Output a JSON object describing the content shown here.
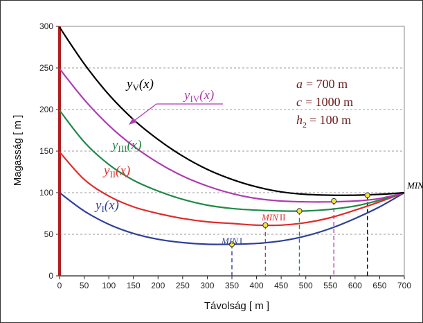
{
  "chart_data": {
    "type": "line",
    "xlabel": "Távolság  [ m ]",
    "ylabel": "Magasság  [ m ]",
    "xlim": [
      0,
      700
    ],
    "ylim": [
      0,
      300
    ],
    "xticks": [
      "0",
      "50",
      "100",
      "150",
      "200",
      "250",
      "300",
      "350",
      "400",
      "450",
      "500",
      "550",
      "600",
      "650",
      "700"
    ],
    "yticks": [
      "0",
      "50",
      "100",
      "150",
      "200",
      "250",
      "300"
    ],
    "grid": "horizontal dashed",
    "params": {
      "a": {
        "name": "a",
        "value": "= 700  m"
      },
      "c": {
        "name": "c",
        "value": "= 1000  m"
      },
      "h2": {
        "name": "h",
        "sub": "2",
        "value": "= 100  m"
      }
    },
    "series": [
      {
        "name": "y_I(x)",
        "label_base": "y",
        "label_sub": "I",
        "label_suffix": "(x)",
        "color": "#2e3f9a",
        "x": [
          0,
          50,
          100,
          150,
          200,
          250,
          300,
          350,
          400,
          450,
          500,
          550,
          600,
          650,
          700
        ],
        "y": [
          100,
          78,
          62,
          51,
          44,
          40,
          38,
          38,
          39,
          42,
          48,
          57,
          69,
          83,
          100
        ]
      },
      {
        "name": "y_II(x)",
        "label_base": "y",
        "label_sub": "II",
        "label_suffix": "(x)",
        "color": "#e02b2b",
        "x": [
          0,
          50,
          100,
          150,
          200,
          250,
          300,
          350,
          400,
          450,
          500,
          550,
          600,
          650,
          700
        ],
        "y": [
          149,
          116,
          96,
          83,
          75,
          69,
          65,
          63,
          61,
          61,
          64,
          70,
          79,
          89,
          100
        ]
      },
      {
        "name": "y_III(x)",
        "label_base": "y",
        "label_sub": "III",
        "label_suffix": "(x)",
        "color": "#1f8a47",
        "x": [
          0,
          50,
          100,
          150,
          200,
          250,
          300,
          350,
          400,
          450,
          500,
          550,
          600,
          650,
          700
        ],
        "y": [
          199,
          161,
          134,
          115,
          102,
          92,
          85,
          81,
          79,
          78,
          78,
          80,
          84,
          91,
          100
        ]
      },
      {
        "name": "y_IV(x)",
        "label_base": "y",
        "label_sub": "IV",
        "label_suffix": "(x)",
        "color": "#b03ab0",
        "x": [
          0,
          50,
          100,
          150,
          200,
          250,
          300,
          350,
          400,
          450,
          500,
          550,
          600,
          650,
          700
        ],
        "y": [
          249,
          212,
          181,
          156,
          136,
          120,
          108,
          99,
          93,
          90,
          89,
          89,
          90,
          93,
          100
        ]
      },
      {
        "name": "y_V(x)",
        "label_base": "y",
        "label_sub": "V",
        "label_suffix": "(x)",
        "color": "#000000",
        "x": [
          0,
          50,
          100,
          150,
          200,
          250,
          300,
          350,
          400,
          450,
          500,
          550,
          600,
          650,
          700
        ],
        "y": [
          299,
          255,
          218,
          188,
          164,
          144,
          128,
          116,
          107,
          101,
          98,
          97,
          97,
          98,
          100
        ]
      }
    ],
    "minima": [
      {
        "label": "MIN",
        "roman": "I",
        "x": 350,
        "y": 38,
        "color": "#2e3f9a"
      },
      {
        "label": "MIN",
        "roman": "II",
        "x": 418,
        "y": 61,
        "color": "#e02b2b"
      },
      {
        "label": "MIN",
        "roman": "",
        "x": 487,
        "y": 78,
        "color": "#1f8a47"
      },
      {
        "label": "MIN",
        "roman": "",
        "x": 557,
        "y": 90,
        "color": "#b03ab0"
      },
      {
        "label": "MIN",
        "roman": "V",
        "x": 625,
        "y": 97,
        "color": "#000000"
      }
    ],
    "wall": {
      "x": 0,
      "color": "#b02020"
    }
  }
}
